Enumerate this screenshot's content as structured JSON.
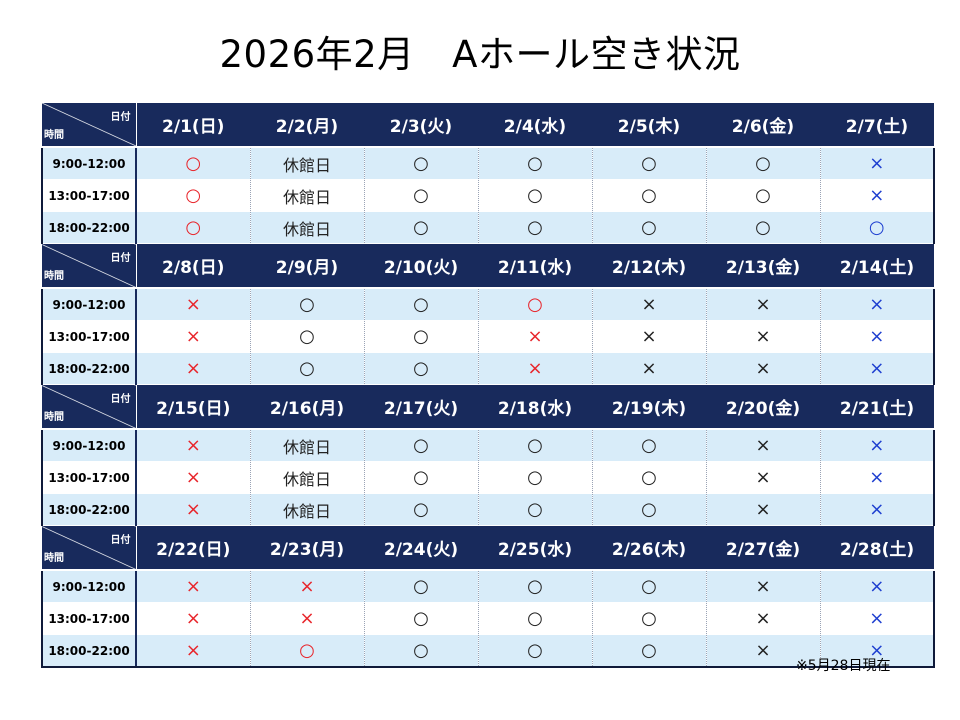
{
  "title": "2026年2月　Aホール空き状況",
  "corner": {
    "day_label": "日付",
    "time_label": "時間"
  },
  "note": "※5月28日現在",
  "time_slots": [
    "9:00-12:00",
    "13:00-17:00",
    "18:00-22:00"
  ],
  "marks": {
    "o": "○",
    "x": "×",
    "closed": "休館日"
  },
  "mark_colors": {
    "red": "#e8252b",
    "black": "#222222",
    "blue": "#1e3fd0"
  },
  "weeks": [
    {
      "days": [
        "2/1(日)",
        "2/2(月)",
        "2/3(火)",
        "2/4(水)",
        "2/5(木)",
        "2/6(金)",
        "2/7(土)"
      ],
      "slots": [
        [
          "o",
          "closed",
          "o",
          "o",
          "o",
          "o",
          "x"
        ],
        [
          "o",
          "closed",
          "o",
          "o",
          "o",
          "o",
          "x"
        ],
        [
          "o",
          "closed",
          "o",
          "o",
          "o",
          "o",
          "o"
        ]
      ]
    },
    {
      "days": [
        "2/8(日)",
        "2/9(月)",
        "2/10(火)",
        "2/11(水)",
        "2/12(木)",
        "2/13(金)",
        "2/14(土)"
      ],
      "slots": [
        [
          "x",
          "o",
          "o",
          "o",
          "x",
          "x",
          "x"
        ],
        [
          "x",
          "o",
          "o",
          "x",
          "x",
          "x",
          "x"
        ],
        [
          "x",
          "o",
          "o",
          "x",
          "x",
          "x",
          "x"
        ]
      ]
    },
    {
      "days": [
        "2/15(日)",
        "2/16(月)",
        "2/17(火)",
        "2/18(水)",
        "2/19(木)",
        "2/20(金)",
        "2/21(土)"
      ],
      "slots": [
        [
          "x",
          "closed",
          "o",
          "o",
          "o",
          "x",
          "x"
        ],
        [
          "x",
          "closed",
          "o",
          "o",
          "o",
          "x",
          "x"
        ],
        [
          "x",
          "closed",
          "o",
          "o",
          "o",
          "x",
          "x"
        ]
      ]
    },
    {
      "days": [
        "2/22(日)",
        "2/23(月)",
        "2/24(火)",
        "2/25(水)",
        "2/26(木)",
        "2/27(金)",
        "2/28(土)"
      ],
      "slots": [
        [
          "x",
          "x",
          "o",
          "o",
          "o",
          "x",
          "x"
        ],
        [
          "x",
          "x",
          "o",
          "o",
          "o",
          "x",
          "x"
        ],
        [
          "x",
          "o",
          "o",
          "o",
          "o",
          "x",
          "x"
        ]
      ]
    }
  ]
}
